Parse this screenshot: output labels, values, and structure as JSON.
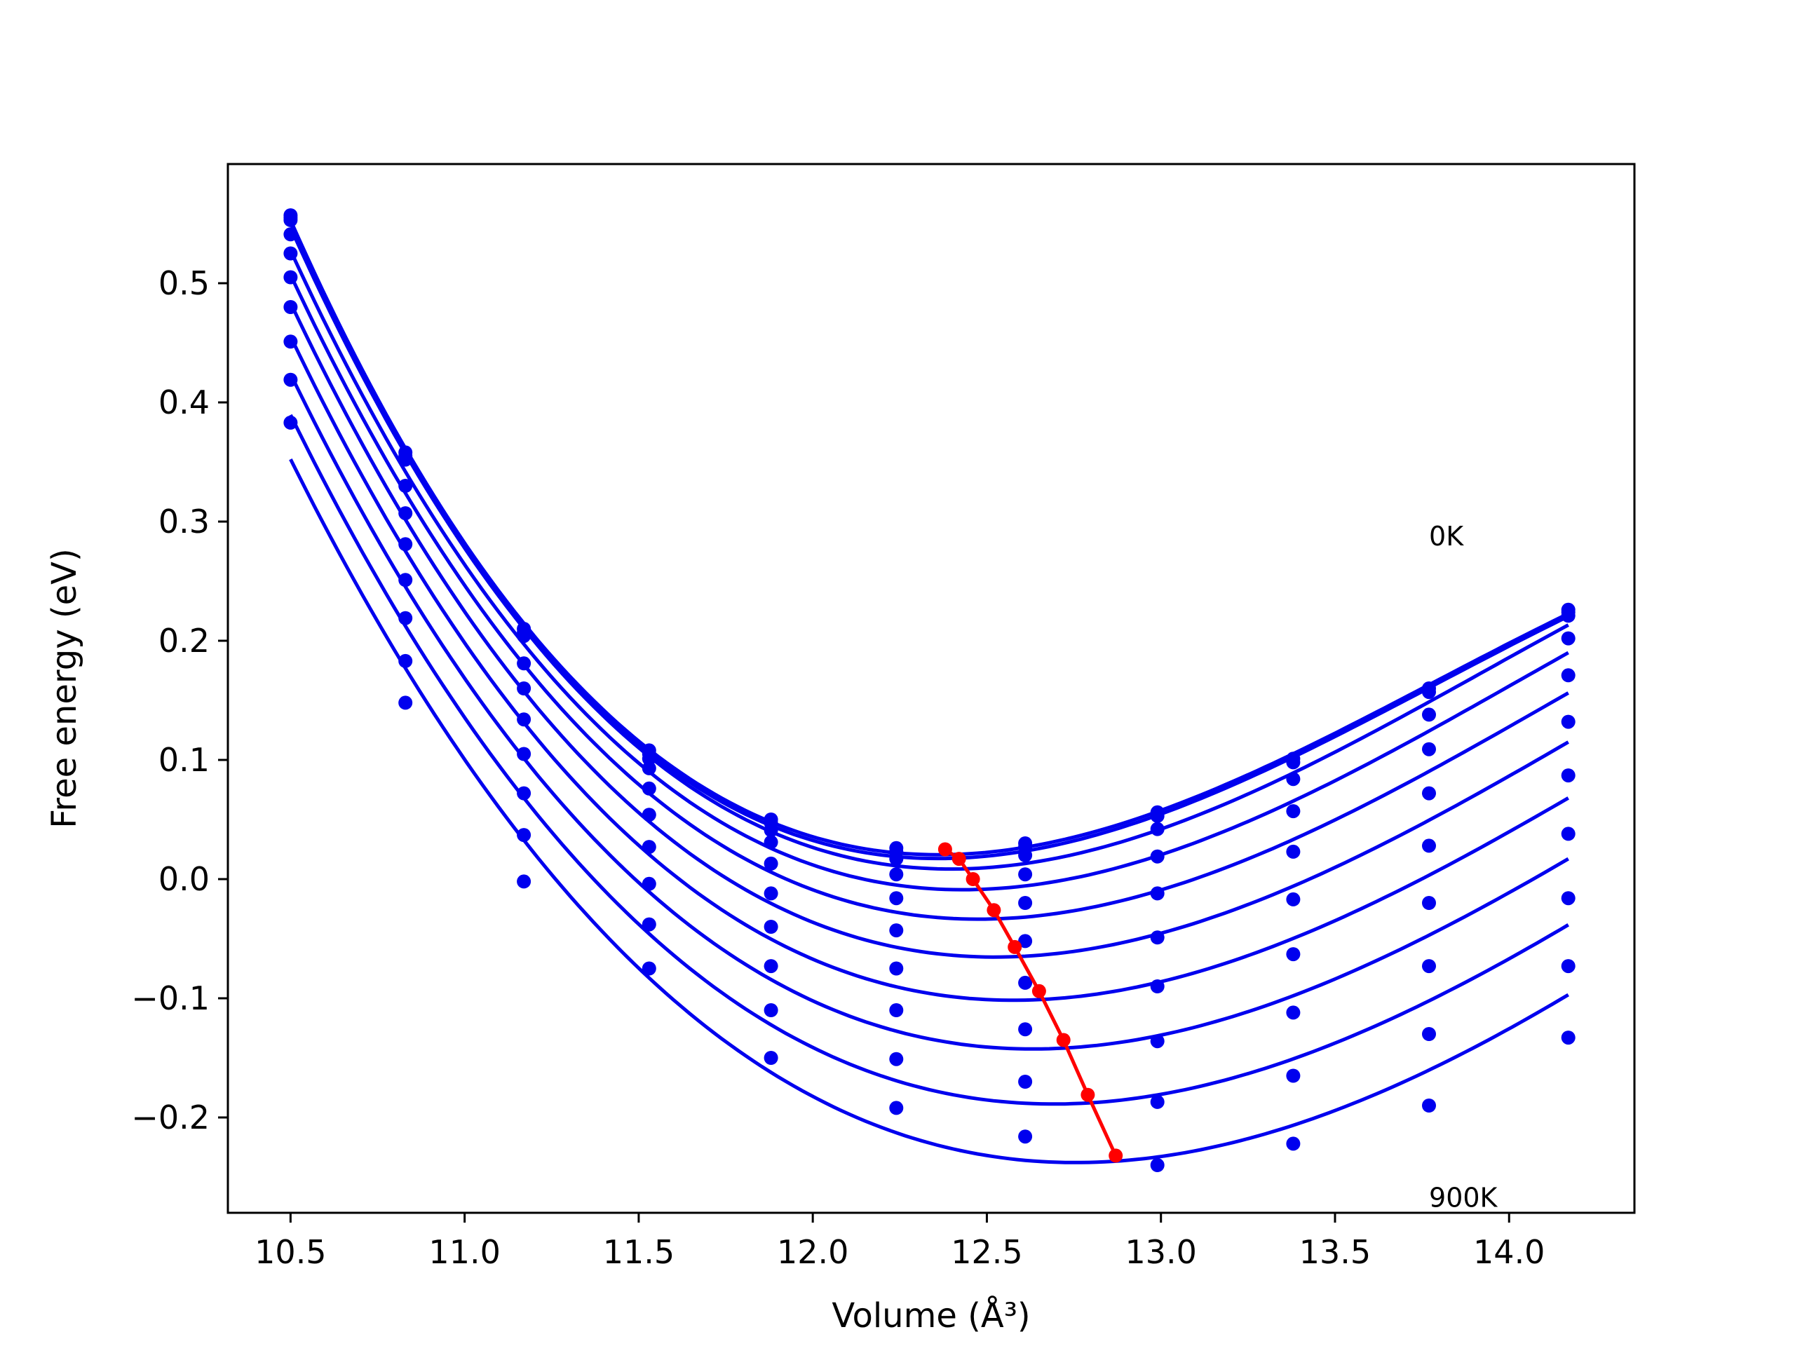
{
  "chart_data": {
    "type": "line",
    "title": "",
    "xlabel": "Volume (Å³)",
    "ylabel": "Free energy (eV)",
    "xlim": [
      10.32,
      14.36
    ],
    "ylim": [
      -0.28,
      0.6
    ],
    "xticks": [
      10.5,
      11.0,
      11.5,
      12.0,
      12.5,
      13.0,
      13.5,
      14.0
    ],
    "xtick_labels": [
      "10.5",
      "11.0",
      "11.5",
      "12.0",
      "12.5",
      "13.0",
      "13.5",
      "14.0"
    ],
    "yticks": [
      0.5,
      0.4,
      0.3,
      0.2,
      0.1,
      0.0,
      -0.1,
      -0.2
    ],
    "ytick_labels": [
      "0.5",
      "0.4",
      "0.3",
      "0.2",
      "0.1",
      "0.0",
      "−0.1",
      "−0.2"
    ],
    "grid": false,
    "annotations": [
      {
        "text": "0K",
        "x": 13.77,
        "y": 0.28
      },
      {
        "text": "900K",
        "x": 13.77,
        "y": -0.275
      }
    ],
    "series_color": "#0000ee",
    "minima_color": "#ff0000",
    "x_points": [
      10.5,
      10.83,
      11.17,
      11.53,
      11.88,
      12.24,
      12.61,
      12.99,
      13.38,
      13.77,
      14.17
    ],
    "series": [
      {
        "values": [
          0.557,
          0.358,
          0.21,
          0.108,
          0.05,
          0.026,
          0.03,
          0.056,
          0.101,
          0.16,
          0.226
        ]
      },
      {
        "values": [
          0.555,
          0.355,
          0.207,
          0.105,
          0.047,
          0.023,
          0.027,
          0.053,
          0.098,
          0.157,
          0.224
        ]
      },
      {
        "values": [
          0.553,
          0.352,
          0.204,
          0.101,
          0.041,
          0.017,
          0.02,
          0.042,
          0.084,
          0.138,
          0.221
        ]
      },
      {
        "values": [
          0.541,
          0.33,
          0.181,
          0.093,
          0.031,
          0.004,
          0.004,
          0.019,
          0.057,
          0.109,
          0.202
        ]
      },
      {
        "values": [
          0.525,
          0.307,
          0.16,
          0.076,
          0.013,
          -0.016,
          -0.02,
          -0.012,
          0.023,
          0.072,
          0.171
        ]
      },
      {
        "values": [
          0.505,
          0.281,
          0.134,
          0.054,
          -0.012,
          -0.043,
          -0.052,
          -0.049,
          -0.017,
          0.028,
          0.132
        ]
      },
      {
        "values": [
          0.48,
          0.251,
          0.105,
          0.027,
          -0.04,
          -0.075,
          -0.087,
          -0.09,
          -0.063,
          -0.02,
          0.087
        ]
      },
      {
        "values": [
          0.451,
          0.219,
          0.072,
          -0.004,
          -0.073,
          -0.11,
          -0.126,
          -0.136,
          -0.112,
          -0.073,
          0.038
        ]
      },
      {
        "values": [
          0.419,
          0.183,
          0.037,
          -0.038,
          -0.11,
          -0.151,
          -0.17,
          -0.187,
          -0.165,
          -0.13,
          -0.016
        ]
      },
      {
        "values": [
          0.383,
          0.148,
          -0.002,
          -0.075,
          -0.15,
          -0.192,
          -0.216,
          -0.24,
          -0.222,
          -0.19,
          -0.073
        ]
      }
    ],
    "extra_points": [
      {
        "x": 14.17,
        "y": -0.133
      }
    ],
    "minima": {
      "x": [
        12.38,
        12.42,
        12.46,
        12.52,
        12.58,
        12.65,
        12.72,
        12.79,
        12.87
      ],
      "y": [
        0.025,
        0.017,
        0.0,
        -0.026,
        -0.057,
        -0.094,
        -0.135,
        -0.181,
        -0.232
      ]
    }
  }
}
